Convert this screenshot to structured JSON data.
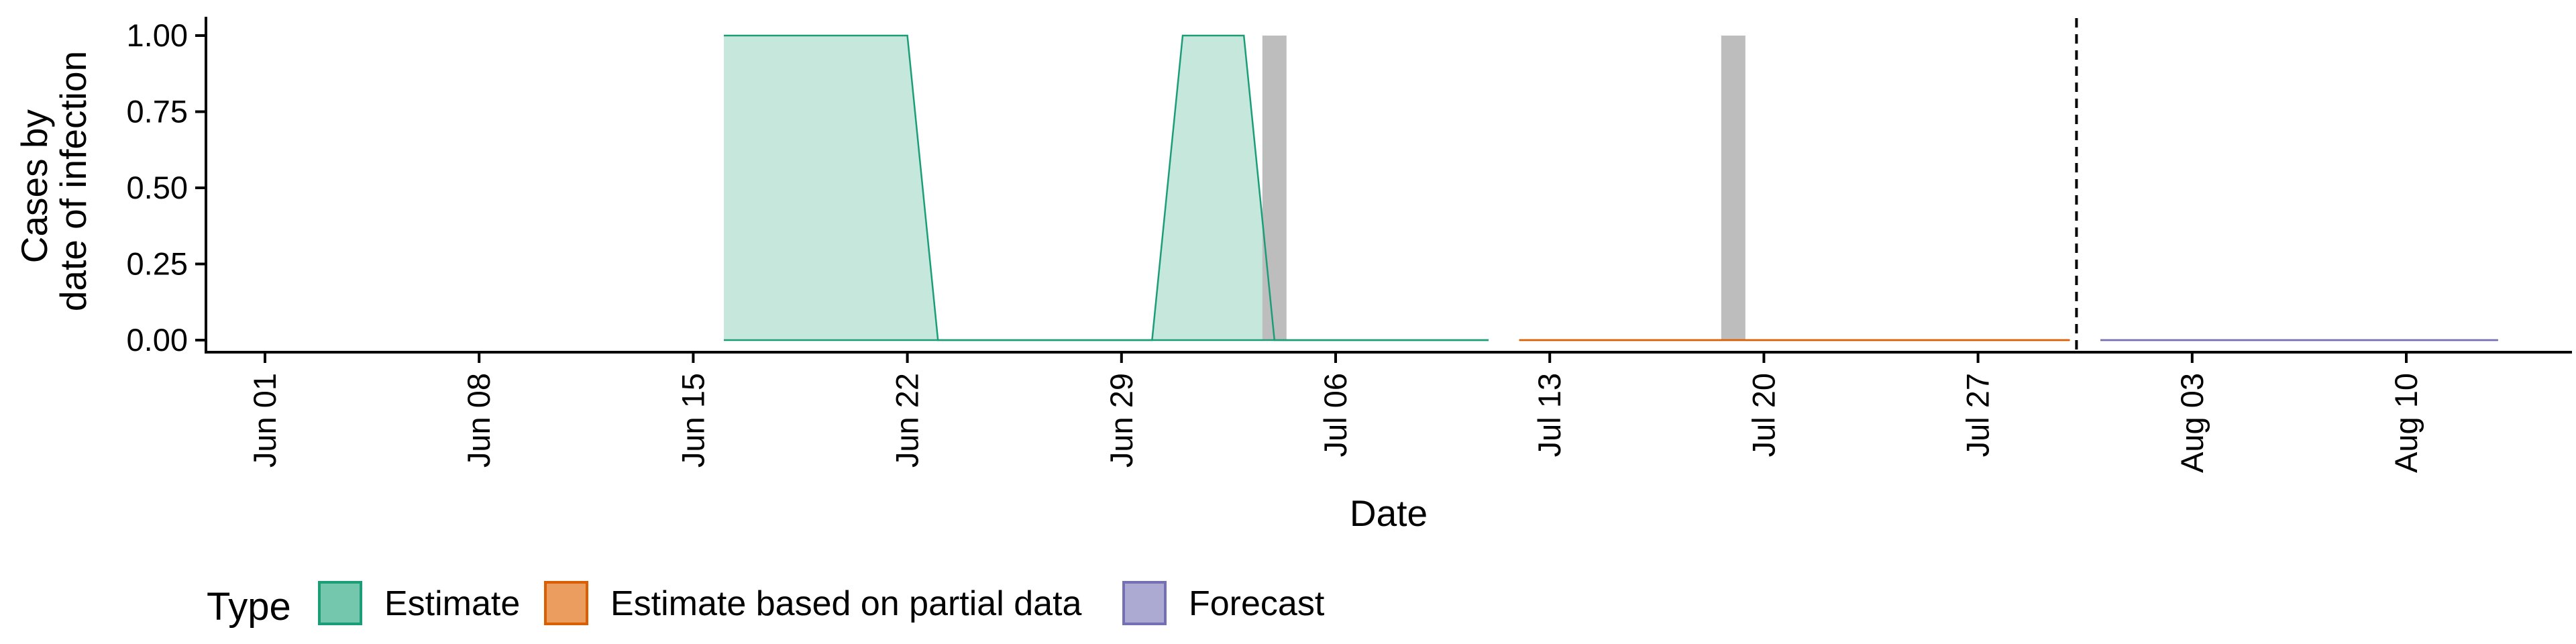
{
  "chart_data": {
    "type": "area",
    "xlabel": "Date",
    "ylabel_lines": [
      "Cases by",
      "date of infection"
    ],
    "x_axis": {
      "type": "date",
      "range": [
        "2020-05-26",
        "2020-08-18"
      ],
      "ticks": [
        {
          "date": "2020-06-01",
          "label": "Jun 01"
        },
        {
          "date": "2020-06-08",
          "label": "Jun 08"
        },
        {
          "date": "2020-06-15",
          "label": "Jun 15"
        },
        {
          "date": "2020-06-22",
          "label": "Jun 22"
        },
        {
          "date": "2020-06-29",
          "label": "Jun 29"
        },
        {
          "date": "2020-07-06",
          "label": "Jul 06"
        },
        {
          "date": "2020-07-13",
          "label": "Jul 13"
        },
        {
          "date": "2020-07-20",
          "label": "Jul 20"
        },
        {
          "date": "2020-07-27",
          "label": "Jul 27"
        },
        {
          "date": "2020-08-03",
          "label": "Aug 03"
        },
        {
          "date": "2020-08-10",
          "label": "Aug 10"
        }
      ]
    },
    "y_axis": {
      "range": [
        -0.04,
        1.04
      ],
      "ticks": [
        {
          "value": 0,
          "label": "0.00"
        },
        {
          "value": 0.25,
          "label": "0.25"
        },
        {
          "value": 0.5,
          "label": "0.50"
        },
        {
          "value": 0.75,
          "label": "0.75"
        },
        {
          "value": 1,
          "label": "1.00"
        }
      ]
    },
    "bars": {
      "color": "#bdbdbd",
      "values": [
        {
          "date": "2020-07-04",
          "value": 1
        },
        {
          "date": "2020-07-19",
          "value": 1
        }
      ]
    },
    "series": [
      {
        "name": "Estimate",
        "stroke": "#1b9e77",
        "fill": "#c5e7dc",
        "points": [
          {
            "date": "2020-06-16",
            "lower": 0,
            "upper": 1
          },
          {
            "date": "2020-06-22",
            "lower": 0,
            "upper": 1
          },
          {
            "date": "2020-06-23",
            "lower": 0,
            "upper": 0
          },
          {
            "date": "2020-06-30",
            "lower": 0,
            "upper": 0
          },
          {
            "date": "2020-07-01",
            "lower": 0,
            "upper": 1
          },
          {
            "date": "2020-07-03",
            "lower": 0,
            "upper": 1
          },
          {
            "date": "2020-07-04",
            "lower": 0,
            "upper": 0
          },
          {
            "date": "2020-07-11",
            "lower": 0,
            "upper": 0
          }
        ]
      },
      {
        "name": "Estimate based on partial data",
        "stroke": "#d95f02",
        "fill": "#efa871",
        "points": [
          {
            "date": "2020-07-12",
            "lower": 0,
            "upper": 0
          },
          {
            "date": "2020-07-30",
            "lower": 0,
            "upper": 0
          }
        ]
      },
      {
        "name": "Forecast",
        "stroke": "#7570b3",
        "fill": "#aca9d2",
        "points": [
          {
            "date": "2020-07-31",
            "lower": 0,
            "upper": 0
          },
          {
            "date": "2020-08-13",
            "lower": 0,
            "upper": 0
          }
        ]
      }
    ],
    "vline": {
      "date": "2020-07-30",
      "style": "dashed"
    },
    "legend": {
      "title": "Type",
      "position": "bottom",
      "entries": [
        {
          "label": "Estimate",
          "fill": "#74c6ad",
          "stroke": "#1b9e77"
        },
        {
          "label": "Estimate based on partial data",
          "fill": "#eb9c5f",
          "stroke": "#d95f02"
        },
        {
          "label": "Forecast",
          "fill": "#aca9d2",
          "stroke": "#7570b3"
        }
      ]
    },
    "grid": false
  }
}
